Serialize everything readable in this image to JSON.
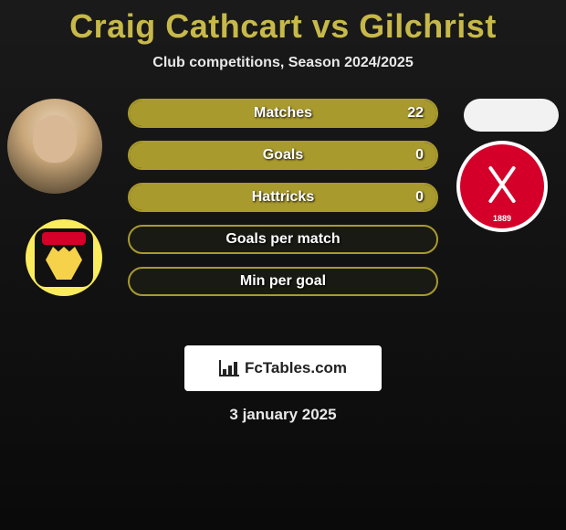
{
  "title": "Craig Cathcart vs Gilchrist",
  "subtitle": "Club competitions, Season 2024/2025",
  "date": "3 january 2025",
  "logo_text": "FcTables.com",
  "colors": {
    "accent": "#a99a2e",
    "title": "#c7b84a",
    "bg_top": "#1a1a1a",
    "bg_bottom": "#0a0a0a",
    "bar_border": "#a99a2e",
    "bar_bg": "#1a1a14",
    "text": "#ffffff",
    "logo_bg": "#ffffff",
    "badge_left_outer": "#fbec5d",
    "badge_right_ring": "#d4002a"
  },
  "left_club_year": "1889",
  "stats": [
    {
      "label": "Matches",
      "value": "22",
      "fill_pct": 100
    },
    {
      "label": "Goals",
      "value": "0",
      "fill_pct": 100
    },
    {
      "label": "Hattricks",
      "value": "0",
      "fill_pct": 100
    },
    {
      "label": "Goals per match",
      "value": "",
      "fill_pct": 0
    },
    {
      "label": "Min per goal",
      "value": "",
      "fill_pct": 0
    }
  ]
}
